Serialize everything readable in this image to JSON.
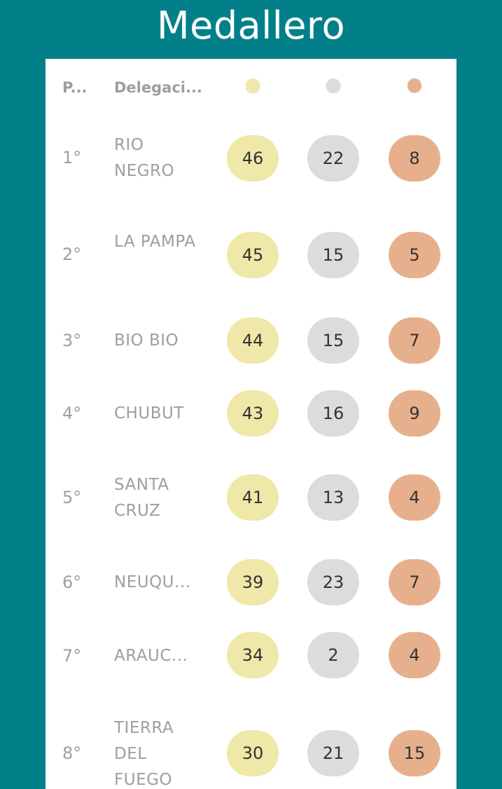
{
  "header": {
    "title": "Medallero"
  },
  "table": {
    "columns": {
      "position": "P...",
      "delegation": "Delegaci...",
      "gold_icon": "gold-medal-icon",
      "silver_icon": "silver-medal-icon",
      "bronze_icon": "bronze-medal-icon"
    },
    "rows": [
      {
        "pos": "1°",
        "name": "RIO NEGRO",
        "gold": "46",
        "silver": "22",
        "bronze": "8"
      },
      {
        "pos": "2°",
        "name": "LA PAMPA",
        "gold": "45",
        "silver": "15",
        "bronze": "5"
      },
      {
        "pos": "3°",
        "name": "BIO BIO",
        "gold": "44",
        "silver": "15",
        "bronze": "7"
      },
      {
        "pos": "4°",
        "name": "CHUBUT",
        "gold": "43",
        "silver": "16",
        "bronze": "9"
      },
      {
        "pos": "5°",
        "name": "SANTA CRUZ",
        "gold": "41",
        "silver": "13",
        "bronze": "4"
      },
      {
        "pos": "6°",
        "name": "NEUQU...",
        "gold": "39",
        "silver": "23",
        "bronze": "7"
      },
      {
        "pos": "7°",
        "name": "ARAUC...",
        "gold": "34",
        "silver": "2",
        "bronze": "4"
      },
      {
        "pos": "8°",
        "name": "TIERRA DEL FUEGO",
        "gold": "30",
        "silver": "21",
        "bronze": "15"
      }
    ]
  },
  "colors": {
    "background": "#01808a",
    "gold": "#efe8a8",
    "silver": "#dcdcdc",
    "bronze": "#e7b08c",
    "muted_text": "#9e9e9e"
  }
}
